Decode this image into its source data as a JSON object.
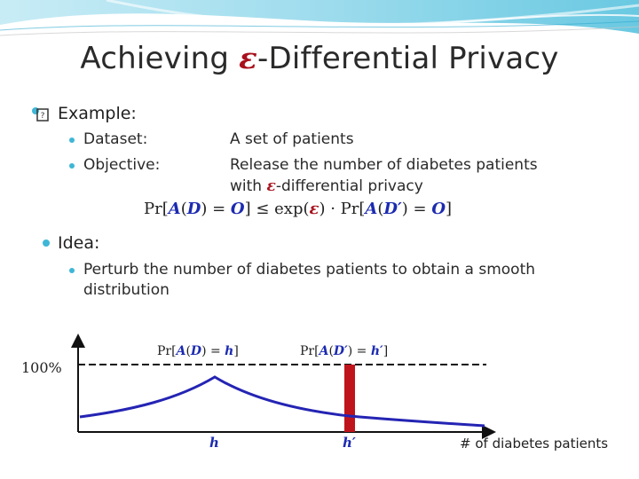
{
  "slide": {
    "title_prefix": "Achieving ",
    "title_epsilon": "ε",
    "title_suffix": "-Differential Privacy",
    "bullet_example": "Example:",
    "dataset_label": "Dataset:",
    "dataset_value": "A set of patients",
    "objective_label": "Objective:",
    "objective_value_line1": "Release the number of diabetes patients",
    "objective_value_line2_pre": "with ",
    "objective_value_line2_eps": "ε",
    "objective_value_line2_post": "-differential privacy",
    "bullet_idea": "Idea:",
    "idea_line1": "Perturb the number of diabetes patients to obtain a smooth",
    "idea_line2": "distribution"
  },
  "formula": {
    "pr1": "Pr[",
    "A1": "A",
    "p1": "(",
    "D1": "D",
    "p2": ") = ",
    "O1": "O",
    "mid": "] ≤ exp(",
    "eps": "ε",
    "mid2": ") · Pr[",
    "A2": "A",
    "p3": "(",
    "D2": "D′",
    "p4": ") = ",
    "O2": "O",
    "end": "]"
  },
  "diagram": {
    "y_label": "100%",
    "x_label": "# of diabetes patients",
    "h_label": "h",
    "hprime_label": "h′",
    "pr_left": {
      "a": "Pr[",
      "A": "A",
      "b": "(",
      "D": "D",
      "c": ") = ",
      "h": "h",
      "d": "]"
    },
    "pr_right": {
      "a": "Pr[",
      "A": "A",
      "b": "(",
      "D": "D′",
      "c": ") = ",
      "h": "h′",
      "d": "]"
    },
    "colors": {
      "curve": "#2424b4",
      "bar": "#c0141c",
      "axis": "#111111"
    }
  }
}
